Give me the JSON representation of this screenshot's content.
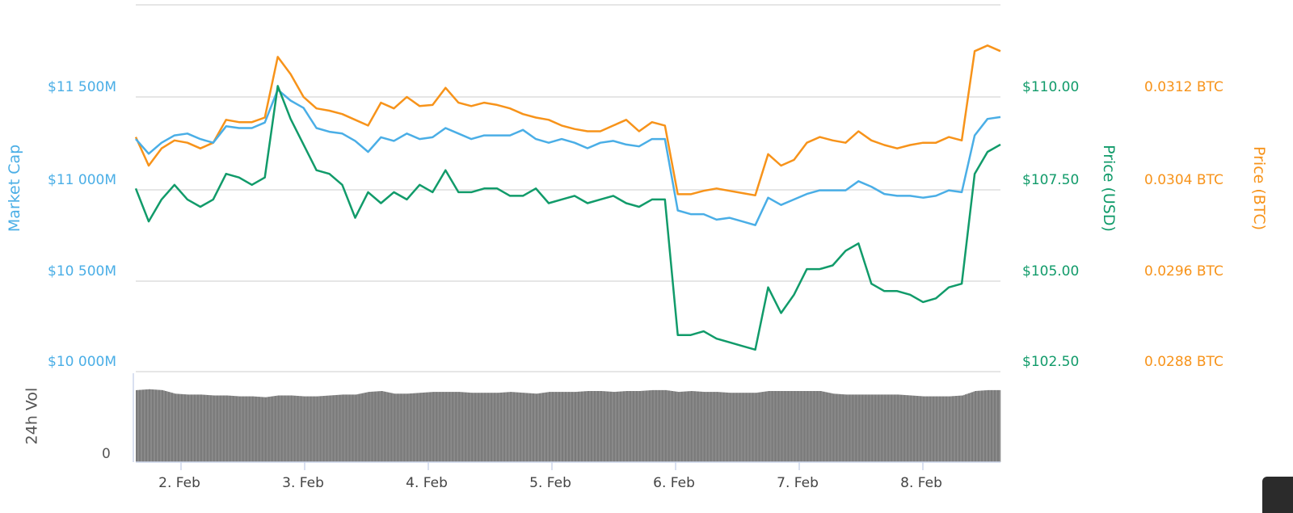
{
  "chart": {
    "axes": {
      "market_cap": {
        "title": "Market Cap",
        "ticks": [
          "$11 500M",
          "$11 000M",
          "$10 500M",
          "$10 000M"
        ],
        "color": "#4aaee6"
      },
      "price_usd": {
        "title": "Price (USD)",
        "ticks": [
          "$110.00",
          "$107.50",
          "$105.00",
          "$102.50"
        ],
        "color": "#119b6a"
      },
      "price_btc": {
        "title": "Price (BTC)",
        "ticks": [
          "0.0312 BTC",
          "0.0304 BTC",
          "0.0296 BTC",
          "0.0288 BTC"
        ],
        "color": "#f7931a"
      },
      "volume": {
        "title": "24h Vol",
        "ticks": [
          "0"
        ],
        "color": "#555555"
      },
      "x_ticks": [
        "2. Feb",
        "3. Feb",
        "4. Feb",
        "5. Feb",
        "6. Feb",
        "7. Feb",
        "8. Feb"
      ]
    }
  },
  "chart_data": {
    "type": "line",
    "title": "",
    "xlabel": "",
    "x_tick_labels": [
      "2. Feb",
      "3. Feb",
      "4. Feb",
      "5. Feb",
      "6. Feb",
      "7. Feb",
      "8. Feb"
    ],
    "x_range": [
      "1. Feb ~15:00",
      "8. Feb ~16:00"
    ],
    "x_step_hours": 4,
    "grid": true,
    "legend": null,
    "y_axes": [
      {
        "id": "market_cap",
        "label": "Market Cap",
        "ticks": [
          "$10 000M",
          "$10 500M",
          "$11 000M",
          "$11 500M"
        ],
        "range_musd": [
          10000,
          11900
        ],
        "position": "left"
      },
      {
        "id": "price_usd",
        "label": "Price (USD)",
        "ticks": [
          "$102.50",
          "$105.00",
          "$107.50",
          "$110.00"
        ],
        "range": [
          102.5,
          112.6
        ],
        "position": "right"
      },
      {
        "id": "price_btc",
        "label": "Price (BTC)",
        "ticks": [
          "0.0288 BTC",
          "0.0296 BTC",
          "0.0304 BTC",
          "0.0312 BTC"
        ],
        "range": [
          0.0288,
          0.032
        ],
        "position": "right"
      },
      {
        "id": "volume",
        "label": "24h Vol",
        "ticks": [
          "0"
        ],
        "position": "left-bottom"
      }
    ],
    "series": [
      {
        "name": "Market Cap",
        "axis": "market_cap",
        "color": "#4aaee6",
        "unit": "M USD",
        "values": [
          11270,
          11190,
          11250,
          11290,
          11300,
          11270,
          11250,
          11340,
          11330,
          11330,
          11360,
          11540,
          11480,
          11440,
          11330,
          11310,
          11300,
          11260,
          11200,
          11280,
          11260,
          11300,
          11270,
          11280,
          11330,
          11300,
          11270,
          11290,
          11290,
          11290,
          11320,
          11270,
          11250,
          11270,
          11250,
          11220,
          11250,
          11260,
          11240,
          11230,
          11270,
          11270,
          10880,
          10860,
          10860,
          10830,
          10840,
          10820,
          10800,
          10950,
          10910,
          10940,
          10970,
          10990,
          10990,
          10990,
          11040,
          11010,
          10970,
          10960,
          10960,
          10950,
          10960,
          10990,
          10980,
          11290,
          11380,
          11390
        ]
      },
      {
        "name": "Price (USD)",
        "axis": "price_usd",
        "color": "#119b6a",
        "unit": "USD",
        "values": [
          107.5,
          106.6,
          107.2,
          107.6,
          107.2,
          107.0,
          107.2,
          107.9,
          107.8,
          107.6,
          107.8,
          110.3,
          109.4,
          108.7,
          108.0,
          107.9,
          107.6,
          106.7,
          107.4,
          107.1,
          107.4,
          107.2,
          107.6,
          107.4,
          108.0,
          107.4,
          107.4,
          107.5,
          107.5,
          107.3,
          107.3,
          107.5,
          107.1,
          107.2,
          107.3,
          107.1,
          107.2,
          107.3,
          107.1,
          107.0,
          107.2,
          107.2,
          103.5,
          103.5,
          103.6,
          103.4,
          103.3,
          103.2,
          103.1,
          104.8,
          104.1,
          104.6,
          105.3,
          105.3,
          105.4,
          105.8,
          106.0,
          104.9,
          104.7,
          104.7,
          104.6,
          104.4,
          104.5,
          104.8,
          104.9,
          107.9,
          108.5,
          108.7
        ]
      },
      {
        "name": "Price (BTC)",
        "axis": "price_btc",
        "color": "#f7931a",
        "unit": "BTC",
        "values": [
          0.03085,
          0.0306,
          0.03075,
          0.03082,
          0.0308,
          0.03075,
          0.0308,
          0.031,
          0.03098,
          0.03098,
          0.03102,
          0.03155,
          0.0314,
          0.0312,
          0.0311,
          0.03108,
          0.03105,
          0.031,
          0.03095,
          0.03115,
          0.0311,
          0.0312,
          0.03112,
          0.03113,
          0.03128,
          0.03115,
          0.03112,
          0.03115,
          0.03113,
          0.0311,
          0.03105,
          0.03102,
          0.031,
          0.03095,
          0.03092,
          0.0309,
          0.0309,
          0.03095,
          0.031,
          0.0309,
          0.03098,
          0.03095,
          0.03035,
          0.03035,
          0.03038,
          0.0304,
          0.03038,
          0.03036,
          0.03034,
          0.0307,
          0.0306,
          0.03065,
          0.0308,
          0.03085,
          0.03082,
          0.0308,
          0.0309,
          0.03082,
          0.03078,
          0.03075,
          0.03078,
          0.0308,
          0.0308,
          0.03085,
          0.03082,
          0.0316,
          0.03165,
          0.0316
        ]
      },
      {
        "name": "24h Vol",
        "axis": "volume",
        "type": "bar",
        "color": "#888888",
        "unit": "relative (0-1)",
        "values": [
          0.81,
          0.82,
          0.81,
          0.77,
          0.76,
          0.76,
          0.75,
          0.75,
          0.74,
          0.74,
          0.73,
          0.75,
          0.75,
          0.74,
          0.74,
          0.75,
          0.76,
          0.76,
          0.79,
          0.8,
          0.77,
          0.77,
          0.78,
          0.79,
          0.79,
          0.79,
          0.78,
          0.78,
          0.78,
          0.79,
          0.78,
          0.77,
          0.79,
          0.79,
          0.79,
          0.8,
          0.8,
          0.79,
          0.8,
          0.8,
          0.81,
          0.81,
          0.79,
          0.8,
          0.79,
          0.79,
          0.78,
          0.78,
          0.78,
          0.8,
          0.8,
          0.8,
          0.8,
          0.8,
          0.77,
          0.76,
          0.76,
          0.76,
          0.76,
          0.76,
          0.75,
          0.74,
          0.74,
          0.74,
          0.75,
          0.8,
          0.81,
          0.81
        ]
      }
    ]
  }
}
